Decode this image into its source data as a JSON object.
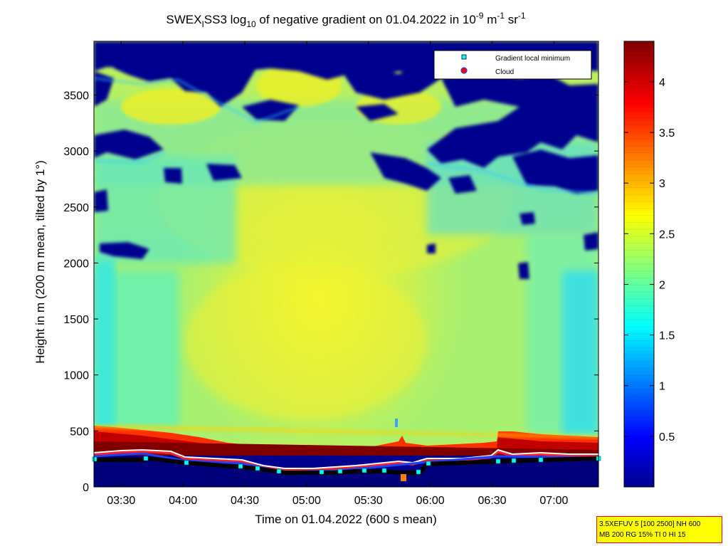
{
  "chart_data": {
    "type": "heatmap",
    "title": {
      "prefix": "SWEX",
      "sub1": "I",
      "mid": "SS3 log",
      "sub2": "10",
      "mid2": " of negative gradient on 01.04.2022 in 10",
      "sup1": "-9",
      "mid3": " m",
      "sup2": "-1",
      "mid4": " sr",
      "sup3": "-1"
    },
    "xlabel": "Time on 01.04.2022 (600 s mean)",
    "ylabel": "Height in m (200 m mean, tilted by 1°)",
    "x_ticks": [
      "03:30",
      "04:00",
      "04:30",
      "05:00",
      "05:30",
      "06:00",
      "06:30",
      "07:00"
    ],
    "x_tick_values_hours": [
      3.5,
      4.0,
      4.5,
      5.0,
      5.5,
      6.0,
      6.5,
      7.0
    ],
    "xlim_hours": [
      3.28,
      7.36
    ],
    "y_ticks": [
      "0",
      "500",
      "1000",
      "1500",
      "2000",
      "2500",
      "3000",
      "3500"
    ],
    "y_tick_values": [
      0,
      500,
      1000,
      1500,
      2000,
      2500,
      3000,
      3500
    ],
    "ylim": [
      0,
      3980
    ],
    "colorbar": {
      "ticks": [
        "0.5",
        "1",
        "1.5",
        "2",
        "2.5",
        "3",
        "3.5",
        "4"
      ],
      "tick_values": [
        0.5,
        1,
        1.5,
        2,
        2.5,
        3,
        3.5,
        4
      ],
      "range": [
        0,
        4.4
      ],
      "colormap": "jet"
    },
    "legend": {
      "placement": "top-right",
      "entries": [
        {
          "label": "Gradient local minimum",
          "marker": "square",
          "color": "#00ffff"
        },
        {
          "label": "Cloud",
          "marker": "circle",
          "color": "#ff0000"
        }
      ]
    },
    "layers": {
      "surface_layer_top_m": [
        250,
        230,
        210,
        180,
        160,
        150,
        170,
        180,
        150,
        200,
        240,
        250,
        250,
        260
      ],
      "strong_gradient_band_m": [
        [
          260,
          540
        ],
        [
          250,
          520
        ],
        [
          230,
          460
        ],
        [
          220,
          420
        ],
        [
          210,
          400
        ],
        [
          200,
          380
        ],
        [
          210,
          390
        ],
        [
          220,
          410
        ],
        [
          230,
          420
        ],
        [
          240,
          430
        ],
        [
          250,
          440
        ],
        [
          260,
          460
        ],
        [
          270,
          470
        ],
        [
          260,
          450
        ]
      ],
      "dark_gap_regions_above_m": 2600
    }
  },
  "info_box": {
    "line1": "3.5XEFUV 5 [100 2500] NH 600",
    "line2": "MB 200 RG 15% TI 0 HI 15"
  }
}
